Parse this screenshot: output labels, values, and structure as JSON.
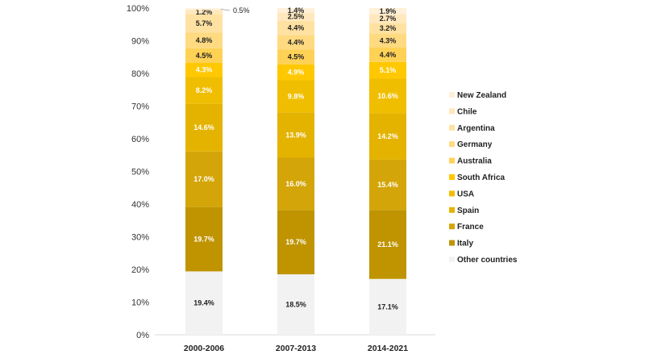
{
  "chart_data": {
    "type": "bar",
    "stacked": true,
    "title": "",
    "xlabel": "",
    "ylabel": "",
    "ylim": [
      0,
      100
    ],
    "yticks": [
      "0%",
      "10%",
      "20%",
      "30%",
      "40%",
      "50%",
      "60%",
      "70%",
      "80%",
      "90%",
      "100%"
    ],
    "categories": [
      "2000-2006",
      "2007-2013",
      "2014-2021"
    ],
    "legend_position": "right",
    "series": [
      {
        "name": "Other countries",
        "color": "#f2f2f2",
        "label_color": "#222222",
        "values": [
          19.4,
          18.5,
          17.1
        ],
        "labels": [
          "19.4%",
          "18.5%",
          "17.1%"
        ]
      },
      {
        "name": "Italy",
        "color": "#bf9400",
        "label_color": "#ffffff",
        "values": [
          19.7,
          19.7,
          21.1
        ],
        "labels": [
          "19.7%",
          "19.7%",
          "21.1%"
        ]
      },
      {
        "name": "France",
        "color": "#d4a508",
        "label_color": "#ffffff",
        "values": [
          17.0,
          16.0,
          15.4
        ],
        "labels": [
          "17.0%",
          "16.0%",
          "15.4%"
        ]
      },
      {
        "name": "Spain",
        "color": "#e4b300",
        "label_color": "#ffffff",
        "values": [
          14.6,
          13.9,
          14.2
        ],
        "labels": [
          "14.6%",
          "13.9%",
          "14.2%"
        ]
      },
      {
        "name": "USA",
        "color": "#f0be00",
        "label_color": "#ffffff",
        "values": [
          8.2,
          9.8,
          10.6
        ],
        "labels": [
          "8.2%",
          "9.8%",
          "10.6%"
        ]
      },
      {
        "name": "South Africa",
        "color": "#ffc800",
        "label_color": "#ffffff",
        "values": [
          4.3,
          4.9,
          5.1
        ],
        "labels": [
          "4.3%",
          "4.9%",
          "5.1%"
        ]
      },
      {
        "name": "Australia",
        "color": "#ffd256",
        "label_color": "#222222",
        "values": [
          4.5,
          4.5,
          4.4
        ],
        "labels": [
          "4.5%",
          "4.5%",
          "4.4%"
        ]
      },
      {
        "name": "Germany",
        "color": "#ffda80",
        "label_color": "#222222",
        "values": [
          4.8,
          4.4,
          4.3
        ],
        "labels": [
          "4.8%",
          "4.4%",
          "4.3%"
        ]
      },
      {
        "name": "Argentina",
        "color": "#ffe1a2",
        "label_color": "#222222",
        "values": [
          5.7,
          4.4,
          3.2
        ],
        "labels": [
          "5.7%",
          "4.4%",
          "3.2%"
        ]
      },
      {
        "name": "Chile",
        "color": "#ffe8bd",
        "label_color": "#222222",
        "values": [
          1.2,
          2.5,
          2.7
        ],
        "labels": [
          "1.2%",
          "2.5%",
          "2.7%"
        ]
      },
      {
        "name": "New Zealand",
        "color": "#fff0d9",
        "label_color": "#222222",
        "values": [
          0.5,
          1.4,
          1.9
        ],
        "labels": [
          "0.5%",
          "1.4%",
          "1.9%"
        ]
      }
    ]
  }
}
